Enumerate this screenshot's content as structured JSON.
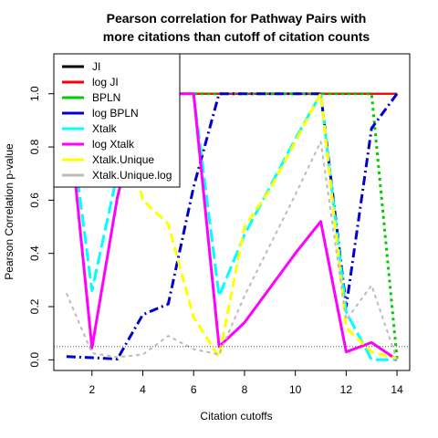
{
  "chart_data": {
    "type": "line",
    "title_lines": [
      "Pearson correlation for Pathway Pairs with",
      "more citations than cutoff of citation counts"
    ],
    "xlabel": "Citation cutoffs",
    "ylabel": "Pearson Correlation p-value",
    "xlim": [
      0.5,
      14.5
    ],
    "ylim": [
      -0.04,
      1.15
    ],
    "xticks": [
      2,
      4,
      6,
      8,
      10,
      12,
      14
    ],
    "yticks": [
      0.0,
      0.2,
      0.4,
      0.6,
      0.8,
      1.0
    ],
    "ytick_labels": [
      "0.0",
      "0.2",
      "0.4",
      "0.6",
      "0.8",
      "1.0"
    ],
    "reference_line": {
      "y": 0.05,
      "style": "dotted",
      "color": "#555555"
    },
    "legend_position": "top-left",
    "x": [
      1,
      2,
      3,
      4,
      5,
      6,
      7,
      8,
      9,
      10,
      11,
      12,
      13,
      14
    ],
    "series": [
      {
        "name": "JI",
        "color": "#000000",
        "dash": "solid",
        "width": 2,
        "values": [
          1.0,
          1.0,
          1.0,
          1.0,
          1.0,
          1.0,
          1.0,
          1.0,
          1.0,
          1.0,
          1.0,
          1.0,
          1.0,
          1.0
        ]
      },
      {
        "name": "log JI",
        "color": "#ff0000",
        "dash": "solid",
        "width": 2,
        "values": [
          1.0,
          1.0,
          1.0,
          1.0,
          1.0,
          1.0,
          1.0,
          1.0,
          1.0,
          1.0,
          1.0,
          1.0,
          1.0,
          1.0
        ]
      },
      {
        "name": "BPLN",
        "color": "#00cc00",
        "dash": "3,4",
        "width": 3,
        "values": [
          1.0,
          1.0,
          1.0,
          1.0,
          1.0,
          1.0,
          1.0,
          1.0,
          1.0,
          1.0,
          1.0,
          1.0,
          1.0,
          0.005
        ]
      },
      {
        "name": "log BPLN",
        "color": "#0000cc",
        "dash": "10,4,2,4",
        "width": 3,
        "values": [
          0.012,
          0.008,
          0.003,
          0.17,
          0.21,
          0.65,
          1.0,
          1.0,
          1.0,
          1.0,
          1.0,
          0.2,
          0.87,
          1.0
        ]
      },
      {
        "name": "Xtalk",
        "color": "#00ffff",
        "dash": "14,5",
        "width": 3,
        "values": [
          1.0,
          0.26,
          0.7,
          1.0,
          1.0,
          1.0,
          0.24,
          0.47,
          0.65,
          0.83,
          1.0,
          0.18,
          0.0,
          0.0
        ]
      },
      {
        "name": "log Xtalk",
        "color": "#ff00ff",
        "dash": "solid",
        "width": 3,
        "values": [
          1.0,
          0.045,
          0.61,
          1.0,
          1.0,
          1.0,
          0.05,
          0.14,
          0.27,
          0.4,
          0.52,
          0.03,
          0.065,
          0.0
        ]
      },
      {
        "name": "Xtalk.Unique",
        "color": "#ffff00",
        "dash": "10,5",
        "width": 3,
        "values": [
          1.0,
          1.0,
          1.0,
          0.6,
          0.51,
          0.16,
          0.01,
          0.5,
          0.64,
          0.82,
          1.0,
          0.12,
          0.03,
          0.005
        ]
      },
      {
        "name": "Xtalk.Unique.log",
        "color": "#bbbbbb",
        "dash": "4,4",
        "width": 2,
        "values": [
          0.25,
          0.025,
          0.01,
          0.02,
          0.09,
          0.04,
          0.02,
          0.24,
          0.43,
          0.62,
          0.82,
          0.15,
          0.28,
          0.0
        ]
      }
    ]
  }
}
